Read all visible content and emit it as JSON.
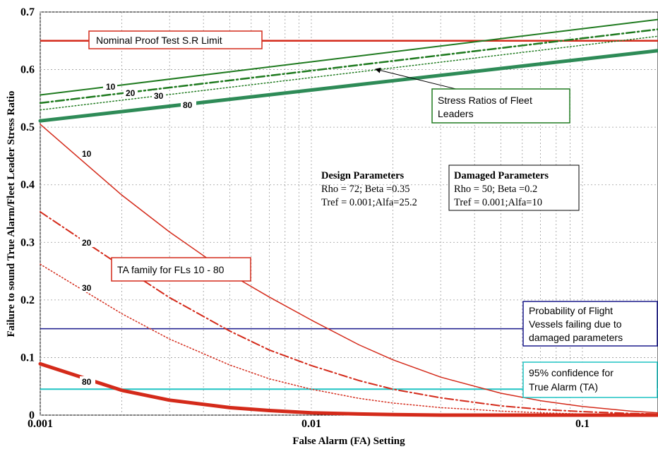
{
  "chart_data": {
    "type": "line",
    "title": "",
    "xlabel": "False Alarm (FA) Setting",
    "ylabel": "Failure to sound True Alarm/Fleet Leader Stress Ratio",
    "xscale": "log",
    "xlim": [
      0.001,
      0.19
    ],
    "ylim": [
      0,
      0.7
    ],
    "grid": true,
    "xticks": [
      {
        "value": 0.001,
        "label": "0.001"
      },
      {
        "value": 0.01,
        "label": "0.01"
      },
      {
        "value": 0.1,
        "label": "0.1"
      }
    ],
    "yticks": [
      {
        "value": 0,
        "label": "0"
      },
      {
        "value": 0.1,
        "label": "0.1"
      },
      {
        "value": 0.2,
        "label": "0.2"
      },
      {
        "value": 0.3,
        "label": "0.3"
      },
      {
        "value": 0.4,
        "label": "0.4"
      },
      {
        "value": 0.5,
        "label": "0.5"
      },
      {
        "value": 0.6,
        "label": "0.6"
      },
      {
        "value": 0.7,
        "label": "0.7"
      }
    ],
    "colors": {
      "red": "#d42a1a",
      "green": "#1f7a1f",
      "teal": "#2e8b57",
      "blue": "#1a1a8c",
      "cyan": "#1fc4c4",
      "grid": "#9a9a9a"
    },
    "series": [
      {
        "name": "10",
        "group": "stress_ratio",
        "color": "#1f7a1f",
        "style": "solid",
        "width": 2,
        "x": [
          0.001,
          0.19
        ],
        "y": [
          0.556,
          0.687
        ]
      },
      {
        "name": "20",
        "group": "stress_ratio",
        "color": "#1f7a1f",
        "style": "dashdot",
        "width": 2.5,
        "x": [
          0.001,
          0.19
        ],
        "y": [
          0.542,
          0.67
        ]
      },
      {
        "name": "30",
        "group": "stress_ratio",
        "color": "#1f7a1f",
        "style": "dotted",
        "width": 1.5,
        "x": [
          0.001,
          0.19
        ],
        "y": [
          0.53,
          0.658
        ]
      },
      {
        "name": "80",
        "group": "stress_ratio",
        "color": "#2e8b57",
        "style": "solid",
        "width": 5,
        "x": [
          0.001,
          0.19
        ],
        "y": [
          0.511,
          0.633
        ]
      },
      {
        "name": "10",
        "group": "true_alarm",
        "color": "#d42a1a",
        "style": "solid",
        "width": 1.5,
        "x": [
          0.001,
          0.002,
          0.003,
          0.005,
          0.007,
          0.01,
          0.015,
          0.02,
          0.03,
          0.05,
          0.07,
          0.1,
          0.15,
          0.19
        ],
        "y": [
          0.505,
          0.382,
          0.318,
          0.245,
          0.205,
          0.165,
          0.122,
          0.096,
          0.066,
          0.038,
          0.025,
          0.015,
          0.007,
          0.004
        ]
      },
      {
        "name": "20",
        "group": "true_alarm",
        "color": "#d42a1a",
        "style": "dashdot",
        "width": 2,
        "x": [
          0.001,
          0.002,
          0.003,
          0.005,
          0.007,
          0.01,
          0.015,
          0.02,
          0.03,
          0.05,
          0.07,
          0.1,
          0.15,
          0.19
        ],
        "y": [
          0.353,
          0.258,
          0.204,
          0.146,
          0.113,
          0.086,
          0.06,
          0.045,
          0.03,
          0.016,
          0.01,
          0.006,
          0.003,
          0.002
        ]
      },
      {
        "name": "30",
        "group": "true_alarm",
        "color": "#d42a1a",
        "style": "dotted",
        "width": 1.5,
        "x": [
          0.001,
          0.002,
          0.003,
          0.005,
          0.007,
          0.01,
          0.015,
          0.02,
          0.03,
          0.05,
          0.07,
          0.1,
          0.15,
          0.19
        ],
        "y": [
          0.262,
          0.176,
          0.132,
          0.087,
          0.063,
          0.045,
          0.029,
          0.021,
          0.013,
          0.007,
          0.004,
          0.002,
          0.001,
          0.001
        ]
      },
      {
        "name": "80",
        "group": "true_alarm",
        "color": "#d42a1a",
        "style": "solid",
        "width": 5,
        "x": [
          0.001,
          0.002,
          0.003,
          0.005,
          0.007,
          0.01,
          0.015,
          0.02,
          0.03,
          0.05,
          0.07,
          0.1,
          0.15,
          0.19
        ],
        "y": [
          0.089,
          0.043,
          0.026,
          0.013,
          0.008,
          0.004,
          0.002,
          0.001,
          0.0,
          0.0,
          0.0,
          0.0,
          0.0,
          0.0
        ]
      }
    ],
    "hlines": [
      {
        "name": "Nominal Proof Test S.R Limit",
        "y": 0.65,
        "color": "#d42a1a",
        "width": 2.5
      },
      {
        "name": "Probability of Flight Vessels failing due to damaged parameters",
        "y": 0.15,
        "color": "#1a1a8c",
        "width": 1.5
      },
      {
        "name": "95% confidence for True Alarm (TA)",
        "y": 0.045,
        "color": "#1fc4c4",
        "width": 2
      }
    ],
    "annotations": {
      "nominal_limit": "Nominal Proof Test S.R Limit",
      "stress_ratios": [
        "Stress Ratios of Fleet",
        "Leaders"
      ],
      "ta_family": "TA family for FLs 10 - 80",
      "design_params": {
        "title": "Design Parameters",
        "line1": "Rho = 72; Beta =0.35",
        "line2": "Tref = 0.001;Alfa=25.2"
      },
      "damaged_params": {
        "title": "Damaged Parameters",
        "line1": "Rho = 50; Beta =0.2",
        "line2": "Tref = 0.001;Alfa=10"
      },
      "flight_vessels": [
        "Probability of Flight",
        "Vessels failing due to",
        "damaged parameters"
      ],
      "confidence": [
        "95% confidence for",
        "True Alarm (TA)"
      ]
    }
  }
}
